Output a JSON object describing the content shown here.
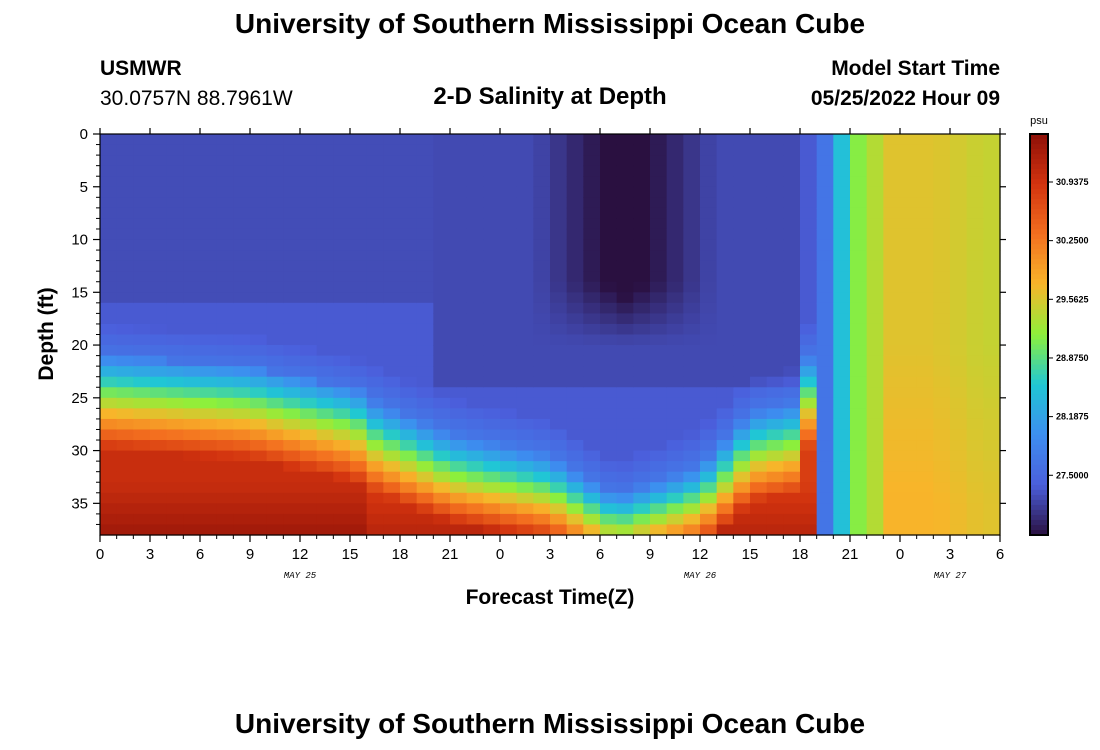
{
  "title": "University of Southern Mississippi Ocean Cube",
  "footer_title": "University of Southern Mississippi Ocean Cube",
  "station": {
    "id": "USMWR",
    "coords": "30.0757N  88.7961W"
  },
  "subtitle": "2-D Salinity at Depth",
  "model": {
    "label": "Model Start Time",
    "start": "05/25/2022 Hour 09"
  },
  "colors": {
    "scale": [
      "#2a1040",
      "#4b5fdc",
      "#3d8ef0",
      "#1fc7d4",
      "#8ef03a",
      "#f8b52a",
      "#f36f1f",
      "#d2330f",
      "#8e1008"
    ]
  },
  "chart_data": {
    "type": "heatmap",
    "title": "2-D Salinity at Depth",
    "xlabel": "Forecast Time(Z)",
    "ylabel": "Depth (ft)",
    "x_tick_labels": [
      "0",
      "3",
      "6",
      "9",
      "12",
      "15",
      "18",
      "21",
      "0",
      "3",
      "6",
      "9",
      "12",
      "15",
      "18",
      "21",
      "0",
      "3",
      "6"
    ],
    "x_hours": [
      0,
      3,
      6,
      9,
      12,
      15,
      18,
      21,
      24,
      27,
      30,
      33,
      36,
      39,
      42,
      45,
      48,
      51,
      54
    ],
    "date_labels": [
      {
        "text": "MAY 25",
        "hour": 12
      },
      {
        "text": "MAY 26",
        "hour": 36
      },
      {
        "text": "MAY 27",
        "hour": 51
      }
    ],
    "y_ticks": [
      0,
      5,
      10,
      15,
      20,
      25,
      30,
      35
    ],
    "ylim": [
      0,
      38
    ],
    "xlim": [
      0,
      54
    ],
    "colorbar": {
      "unit": "psu",
      "labels": [
        "30.9375",
        "30.2500",
        "29.5625",
        "28.8750",
        "28.1875",
        "27.5000"
      ],
      "values": [
        30.9375,
        30.25,
        29.5625,
        28.875,
        28.1875,
        27.5
      ],
      "range": [
        26.8,
        31.5
      ]
    },
    "value_range": [
      26.8,
      31.5
    ],
    "grid": {
      "nx": 54,
      "ny": 38,
      "base": 27.2,
      "features": [
        {
          "kind": "layer_bottom",
          "value_top": 27.6,
          "value_bottom": 31.1
        },
        {
          "kind": "plume_low",
          "center_hour": 31.5,
          "width_hours": 5,
          "value": 26.8
        },
        {
          "kind": "front_high",
          "start_hour": 46,
          "value": 29.6
        }
      ]
    },
    "interface_depth_by_hour": [
      {
        "hour": 0,
        "depth": 21
      },
      {
        "hour": 9,
        "depth": 22
      },
      {
        "hour": 15,
        "depth": 24
      },
      {
        "hour": 21,
        "depth": 28
      },
      {
        "hour": 27,
        "depth": 30
      },
      {
        "hour": 31,
        "depth": 34
      },
      {
        "hour": 36,
        "depth": 31
      },
      {
        "hour": 39,
        "depth": 26
      },
      {
        "hour": 42,
        "depth": 25
      },
      {
        "hour": 45,
        "depth": 0
      },
      {
        "hour": 54,
        "depth": 0
      }
    ]
  }
}
